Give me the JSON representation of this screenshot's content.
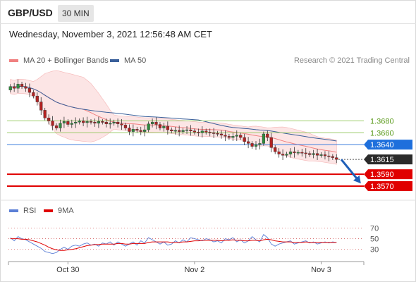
{
  "header": {
    "symbol": "GBP/USD",
    "timeframe": "30 MIN",
    "timestamp": "Wednesday, November 3, 2021 12:56:48 AM CET"
  },
  "legend": {
    "ma20_label": "MA 20 + Bollinger Bands",
    "ma20_color": "#f08080",
    "ma50_label": "MA 50",
    "ma50_color": "#3a5f9a",
    "credit": "Research © 2021 Trading Central"
  },
  "rsi_legend": {
    "rsi_label": "RSI",
    "rsi_color": "#5b7fd6",
    "ma_label": "9MA",
    "ma_color": "#e00000"
  },
  "chart_data": [
    {
      "type": "candlestick",
      "ylim": [
        1.3545,
        1.3765
      ],
      "x_ticks": [
        {
          "label": "Oct 30",
          "index": 15
        },
        {
          "label": "Nov 2",
          "index": 48
        },
        {
          "label": "Nov 3",
          "index": 81
        }
      ],
      "n_bars": 86,
      "close_path": [
        1.3738,
        1.3735,
        1.3742,
        1.3738,
        1.3735,
        1.3728,
        1.3722,
        1.3712,
        1.3698,
        1.3685,
        1.368,
        1.3672,
        1.3668,
        1.3676,
        1.3679,
        1.3674,
        1.3676,
        1.3678,
        1.368,
        1.3677,
        1.3679,
        1.3678,
        1.3676,
        1.3679,
        1.3678,
        1.3675,
        1.3676,
        1.3678,
        1.3675,
        1.3673,
        1.3668,
        1.3662,
        1.3666,
        1.3664,
        1.3662,
        1.3665,
        1.3675,
        1.3678,
        1.3674,
        1.3668,
        1.3671,
        1.3665,
        1.3663,
        1.3664,
        1.3662,
        1.3664,
        1.3665,
        1.3663,
        1.3661,
        1.366,
        1.3663,
        1.3661,
        1.366,
        1.3659,
        1.3658,
        1.3656,
        1.3654,
        1.3652,
        1.3654,
        1.3656,
        1.3652,
        1.3645,
        1.3642,
        1.3637,
        1.364,
        1.3642,
        1.3658,
        1.3652,
        1.3635,
        1.3628,
        1.3624,
        1.3622,
        1.3624,
        1.3628,
        1.3626,
        1.3627,
        1.3626,
        1.3625,
        1.3623,
        1.3625,
        1.3622,
        1.3623,
        1.3621,
        1.362,
        1.3618,
        1.3615
      ],
      "current_price": 1.3615,
      "projection": {
        "from": 1.3615,
        "to": 1.358
      },
      "levels": [
        {
          "value": 1.368,
          "label": "1.3680",
          "kind": "resistance"
        },
        {
          "value": 1.366,
          "label": "1.3660",
          "kind": "resistance"
        },
        {
          "value": 1.364,
          "label": "1.3640",
          "kind": "pivot"
        },
        {
          "value": 1.3615,
          "label": "1.3615",
          "kind": "current"
        },
        {
          "value": 1.359,
          "label": "1.3590",
          "kind": "support"
        },
        {
          "value": 1.357,
          "label": "1.3570",
          "kind": "support"
        }
      ]
    },
    {
      "type": "line",
      "title": "RSI",
      "ylim": [
        15,
        80
      ],
      "y_ticks": [
        70,
        50,
        30
      ],
      "rsi": [
        52,
        46,
        54,
        50,
        48,
        44,
        40,
        36,
        32,
        26,
        24,
        22,
        24,
        30,
        34,
        30,
        36,
        38,
        36,
        40,
        42,
        38,
        40,
        36,
        42,
        40,
        44,
        38,
        44,
        40,
        36,
        40,
        44,
        38,
        46,
        42,
        52,
        48,
        44,
        40,
        44,
        38,
        40,
        46,
        42,
        48,
        44,
        52,
        50,
        48,
        46,
        50,
        48,
        44,
        46,
        42,
        50,
        48,
        52,
        44,
        48,
        42,
        46,
        54,
        48,
        44,
        58,
        52,
        40,
        36,
        40,
        42,
        44,
        46,
        40,
        42,
        44,
        46,
        42,
        44,
        40,
        42,
        44,
        42,
        44,
        43
      ],
      "ma9": [
        50,
        50,
        50,
        49,
        49,
        48,
        46,
        44,
        41,
        38,
        34,
        31,
        29,
        28,
        28,
        29,
        30,
        31,
        33,
        35,
        37,
        38,
        39,
        39,
        40,
        40,
        40,
        40,
        41,
        41,
        40,
        40,
        41,
        41,
        41,
        41,
        43,
        44,
        44,
        44,
        44,
        44,
        43,
        43,
        43,
        44,
        44,
        45,
        46,
        46,
        47,
        47,
        47,
        47,
        47,
        46,
        47,
        47,
        48,
        47,
        47,
        46,
        46,
        47,
        47,
        46,
        48,
        49,
        48,
        46,
        45,
        44,
        44,
        44,
        43,
        43,
        43,
        44,
        43,
        43,
        43,
        43,
        43,
        43,
        43,
        43
      ]
    }
  ]
}
